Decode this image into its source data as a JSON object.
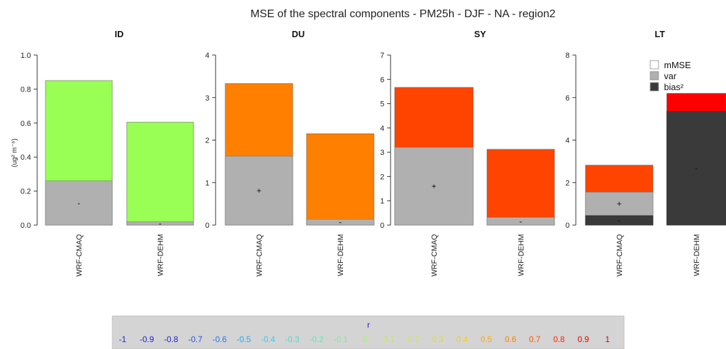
{
  "chart_data": {
    "type": "bar",
    "title": "MSE  of the spectral components -  PM25h - DJF - NA - region2",
    "ylabel": "(ug² m⁻⁶)",
    "legend": {
      "position": "top-right",
      "items": [
        {
          "key": "mMSE",
          "label": "mMSE",
          "color": "#ffffff"
        },
        {
          "key": "var",
          "label": "var",
          "color": "#b0b0b0"
        },
        {
          "key": "bias2",
          "label": "bias²",
          "color": "#3a3a3a"
        }
      ]
    },
    "panels": [
      {
        "name": "ID",
        "ylim": [
          0,
          1.0
        ],
        "yticks": [
          "0.0",
          "0.2",
          "0.4",
          "0.6",
          "0.8",
          "1.0"
        ],
        "bars": [
          {
            "model": "WRF-CMAQ",
            "bias2": 0.0,
            "var": 0.26,
            "total": 0.85,
            "color": "#99ff55",
            "sign": "-"
          },
          {
            "model": "WRF-DEHM",
            "bias2": 0.0,
            "var": 0.02,
            "total": 0.605,
            "color": "#99ff55",
            "sign": "-"
          }
        ]
      },
      {
        "name": "DU",
        "ylim": [
          0,
          4
        ],
        "yticks": [
          "0",
          "1",
          "2",
          "3",
          "4"
        ],
        "bars": [
          {
            "model": "WRF-CMAQ",
            "bias2": 0.0,
            "var": 1.62,
            "total": 3.33,
            "color": "#ff8000",
            "sign": "+"
          },
          {
            "model": "WRF-DEHM",
            "bias2": 0.0,
            "var": 0.14,
            "total": 2.15,
            "color": "#ff8000",
            "sign": "-"
          }
        ]
      },
      {
        "name": "SY",
        "ylim": [
          0,
          7
        ],
        "yticks": [
          "0",
          "1",
          "2",
          "3",
          "4",
          "5",
          "6",
          "7"
        ],
        "bars": [
          {
            "model": "WRF-CMAQ",
            "bias2": 0.0,
            "var": 3.2,
            "total": 5.67,
            "color": "#ff4400",
            "sign": "+"
          },
          {
            "model": "WRF-DEHM",
            "bias2": 0.0,
            "var": 0.32,
            "total": 3.12,
            "color": "#ff4400",
            "sign": "-"
          }
        ]
      },
      {
        "name": "LT",
        "ylim": [
          0,
          8
        ],
        "yticks": [
          "0",
          "2",
          "4",
          "6",
          "8"
        ],
        "bars": [
          {
            "model": "WRF-CMAQ",
            "bias2": 0.45,
            "var": 1.55,
            "total": 2.82,
            "color": "#ff4400",
            "sign": "+",
            "sign2": "-"
          },
          {
            "model": "WRF-DEHM",
            "bias2": 5.35,
            "var": 5.35,
            "total": 6.2,
            "color": "#ff0000",
            "sign": "-"
          }
        ]
      }
    ],
    "colorbar": {
      "title": "r",
      "entries": [
        {
          "label": "-1",
          "color": "#2222cc"
        },
        {
          "label": "-0.9",
          "color": "#2222cc"
        },
        {
          "label": "-0.8",
          "color": "#2222cc"
        },
        {
          "label": "-0.7",
          "color": "#2255dd"
        },
        {
          "label": "-0.6",
          "color": "#2277ee"
        },
        {
          "label": "-0.5",
          "color": "#22aaee"
        },
        {
          "label": "-0.4",
          "color": "#33ccee"
        },
        {
          "label": "-0.3",
          "color": "#44ddcc"
        },
        {
          "label": "-0.2",
          "color": "#55eeaa"
        },
        {
          "label": "-0.1",
          "color": "#77ee99"
        },
        {
          "label": "0",
          "color": "#99ff55"
        },
        {
          "label": "0.1",
          "color": "#bbee55"
        },
        {
          "label": "0.2",
          "color": "#ccee44"
        },
        {
          "label": "0.3",
          "color": "#dddd33"
        },
        {
          "label": "0.4",
          "color": "#eecc22"
        },
        {
          "label": "0.5",
          "color": "#ffaa00"
        },
        {
          "label": "0.6",
          "color": "#ff8000"
        },
        {
          "label": "0.7",
          "color": "#ff5500"
        },
        {
          "label": "0.8",
          "color": "#ff2200"
        },
        {
          "label": "0.9",
          "color": "#ee0000"
        },
        {
          "label": "1",
          "color": "#dd0000"
        }
      ]
    }
  }
}
